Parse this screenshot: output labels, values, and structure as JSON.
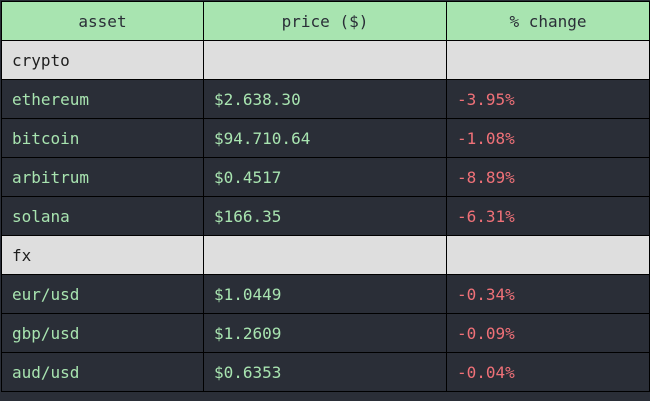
{
  "table": {
    "headers": [
      "asset",
      "price ($)",
      "% change"
    ],
    "groups": [
      {
        "name": "crypto",
        "rows": [
          {
            "asset": "ethereum",
            "price": "$2.638.30",
            "change": "-3.95%"
          },
          {
            "asset": "bitcoin",
            "price": "$94.710.64",
            "change": "-1.08%"
          },
          {
            "asset": "arbitrum",
            "price": "$0.4517",
            "change": "-8.89%"
          },
          {
            "asset": "solana",
            "price": "$166.35",
            "change": "-6.31%"
          }
        ]
      },
      {
        "name": "fx",
        "rows": [
          {
            "asset": "eur/usd",
            "price": "$1.0449",
            "change": "-0.34%"
          },
          {
            "asset": "gbp/usd",
            "price": "$1.2609",
            "change": "-0.09%"
          },
          {
            "asset": "aud/usd",
            "price": "$0.6353",
            "change": "-0.04%"
          }
        ]
      }
    ]
  },
  "colors": {
    "header_bg": "#a8e4b0",
    "group_bg": "#dedede",
    "row_bg": "#2a2e37",
    "text_green": "#a8e4b0",
    "text_red": "#f07178"
  }
}
